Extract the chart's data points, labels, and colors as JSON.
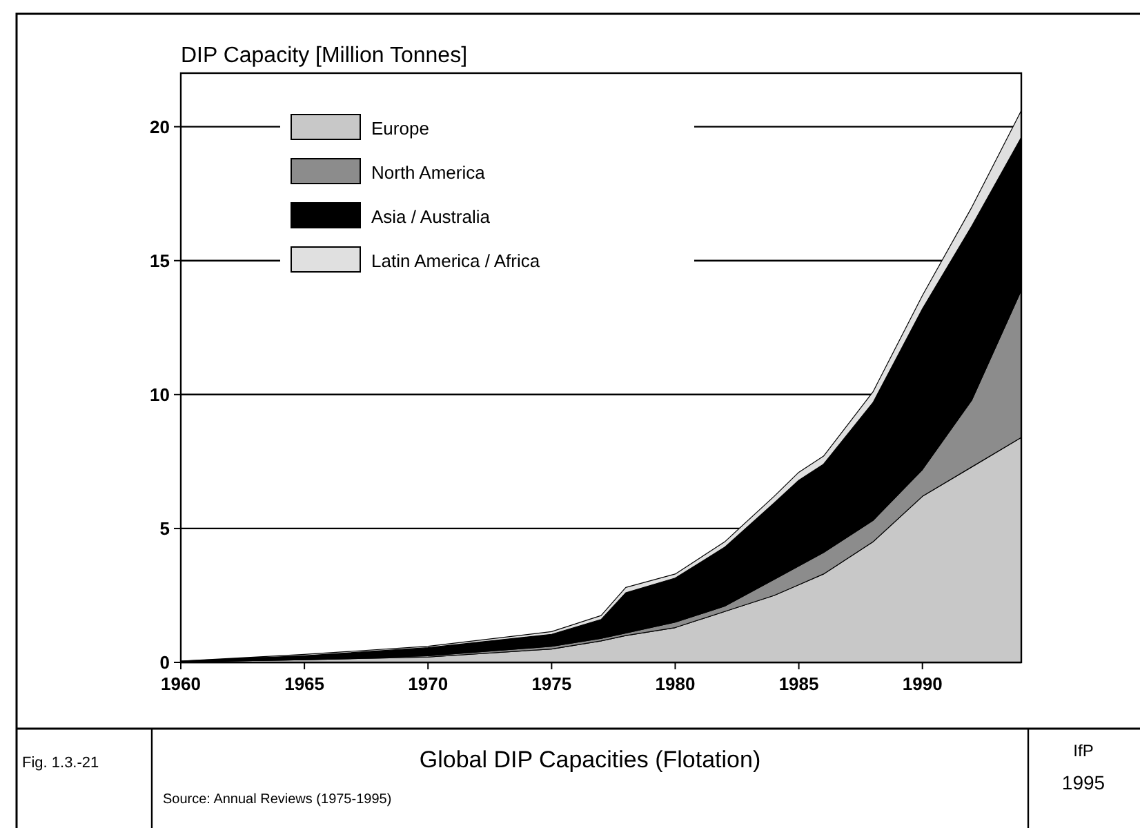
{
  "chart_data": {
    "type": "area",
    "stacked": true,
    "ylabel": "DIP Capacity [Million Tonnes]",
    "title": "Global DIP Capacities (Flotation)",
    "annotations": [
      "Fig. 1.3.-21",
      "Source: Annual Reviews (1975-1995)",
      "IfP",
      "1995"
    ],
    "x": [
      1960,
      1965,
      1970,
      1975,
      1977,
      1978,
      1980,
      1982,
      1984,
      1985,
      1986,
      1988,
      1990,
      1992,
      1994
    ],
    "series": [
      {
        "name": "Europe",
        "color": "#c8c8c8",
        "values": [
          0.02,
          0.1,
          0.2,
          0.5,
          0.8,
          1.0,
          1.3,
          1.9,
          2.5,
          2.9,
          3.3,
          4.5,
          6.2,
          7.3,
          8.4
        ]
      },
      {
        "name": "North America",
        "color": "#8c8c8c",
        "values": [
          0,
          0,
          0.05,
          0.1,
          0.1,
          0.1,
          0.2,
          0.2,
          0.6,
          0.7,
          0.8,
          0.8,
          1.0,
          2.5,
          5.5
        ]
      },
      {
        "name": "Asia / Australia",
        "color": "#000000",
        "values": [
          0.03,
          0.15,
          0.3,
          0.45,
          0.7,
          1.5,
          1.65,
          2.2,
          2.85,
          3.2,
          3.3,
          4.4,
          6.0,
          6.5,
          5.7
        ]
      },
      {
        "name": "Latin America / Africa",
        "color": "#e0e0e0",
        "values": [
          0,
          0.05,
          0.05,
          0.1,
          0.15,
          0.2,
          0.15,
          0.2,
          0.25,
          0.3,
          0.3,
          0.4,
          0.5,
          0.7,
          1.0
        ]
      }
    ],
    "xlim": [
      1960,
      1994
    ],
    "xticks": [
      1960,
      1965,
      1970,
      1975,
      1980,
      1985,
      1990
    ],
    "ylim": [
      0,
      22
    ],
    "yticks": [
      0,
      5,
      10,
      15,
      20
    ],
    "grid": "y",
    "legend": "top left"
  }
}
